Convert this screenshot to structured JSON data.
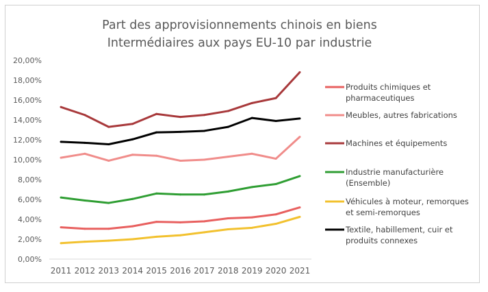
{
  "chart_data": {
    "type": "line",
    "title": [
      "Part des approvisionnements chinois en biens",
      "Intermédiaires aux pays EU-10 par industrie"
    ],
    "xlabel": "",
    "ylabel": "",
    "categories": [
      "2011",
      "2012",
      "2013",
      "2014",
      "2015",
      "2016",
      "2017",
      "2018",
      "2019",
      "2020",
      "2021"
    ],
    "ylim": [
      0,
      20
    ],
    "yticks": [
      "0,00%",
      "2,00%",
      "4,00%",
      "6,00%",
      "8,00%",
      "10,00%",
      "12,00%",
      "14,00%",
      "16,00%",
      "18,00%",
      "20,00%"
    ],
    "grid": false,
    "legend_position": "right",
    "series": [
      {
        "name": [
          "Produits chimiques et",
          "pharmaceutiques"
        ],
        "color": "#e8605f",
        "values": [
          3.2,
          3.05,
          3.05,
          3.3,
          3.75,
          3.7,
          3.8,
          4.1,
          4.2,
          4.5,
          5.2
        ]
      },
      {
        "name": [
          "Meubles, autres fabrications"
        ],
        "color": "#f08c8a",
        "values": [
          10.2,
          10.6,
          9.9,
          10.5,
          10.4,
          9.9,
          10.0,
          10.3,
          10.6,
          10.1,
          12.3
        ]
      },
      {
        "name": [
          "Machines et équipements"
        ],
        "color": "#a8393b",
        "values": [
          15.3,
          14.5,
          13.3,
          13.6,
          14.6,
          14.3,
          14.5,
          14.9,
          15.7,
          16.2,
          18.8
        ]
      },
      {
        "name": [
          "Industrie manufacturière",
          "(Ensemble)"
        ],
        "color": "#2f9e33",
        "values": [
          6.2,
          5.9,
          5.65,
          6.05,
          6.6,
          6.5,
          6.5,
          6.8,
          7.25,
          7.55,
          8.35
        ]
      },
      {
        "name": [
          "Véhicules à moteur, remorques",
          "et semi-remorques"
        ],
        "color": "#f2c12e",
        "values": [
          1.6,
          1.75,
          1.85,
          2.0,
          2.25,
          2.4,
          2.7,
          3.0,
          3.15,
          3.55,
          4.25
        ]
      },
      {
        "name": [
          "Textile, habillement, cuir et",
          "produits connexes"
        ],
        "color": "#000000",
        "values": [
          11.8,
          11.7,
          11.55,
          12.05,
          12.75,
          12.8,
          12.9,
          13.3,
          14.2,
          13.9,
          14.15
        ]
      }
    ]
  }
}
